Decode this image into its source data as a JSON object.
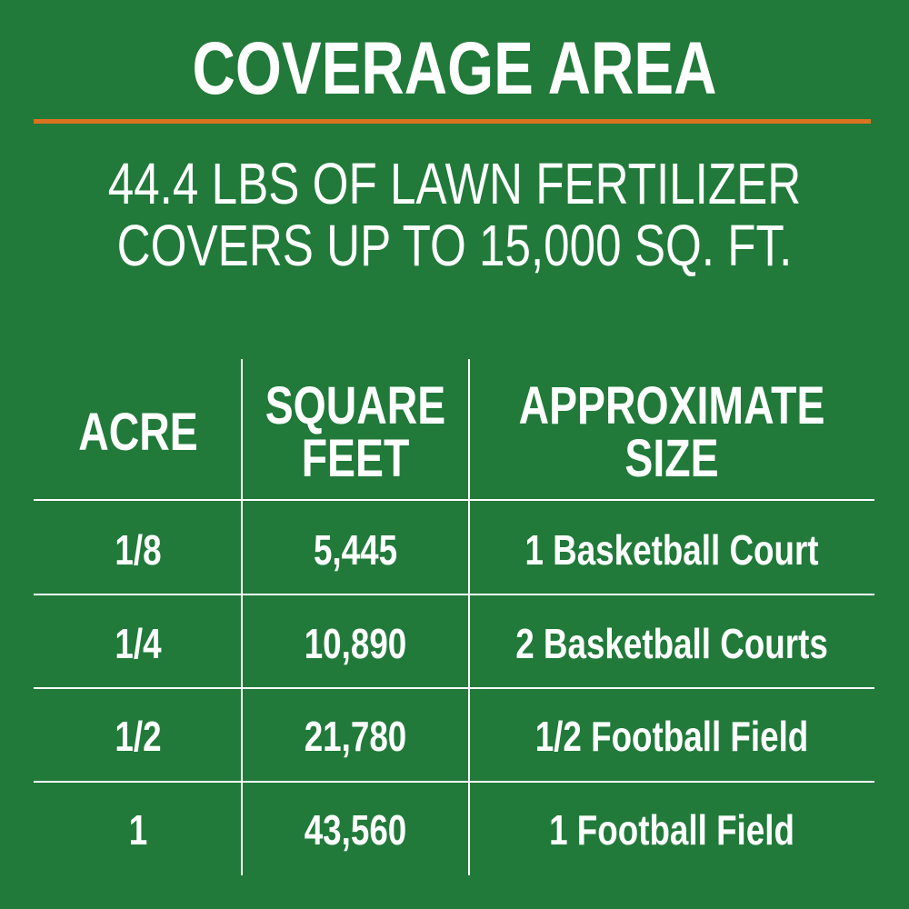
{
  "header": {
    "title": "COVERAGE AREA",
    "subtitle": [
      "44.4 LBS OF LAWN FERTILIZER",
      "COVERS UP TO 15,000 SQ. FT."
    ]
  },
  "table": {
    "headers": [
      [
        "ACRE"
      ],
      [
        "SQUARE",
        "FEET"
      ],
      [
        "APPROXIMATE",
        "SIZE"
      ]
    ],
    "rows": [
      [
        "1/8",
        "5,445",
        "1 Basketball Court"
      ],
      [
        "1/4",
        "10,890",
        "2 Basketball Courts"
      ],
      [
        "1/2",
        "21,780",
        "1/2 Football Field"
      ],
      [
        "1",
        "43,560",
        "1 Football Field"
      ]
    ]
  }
}
